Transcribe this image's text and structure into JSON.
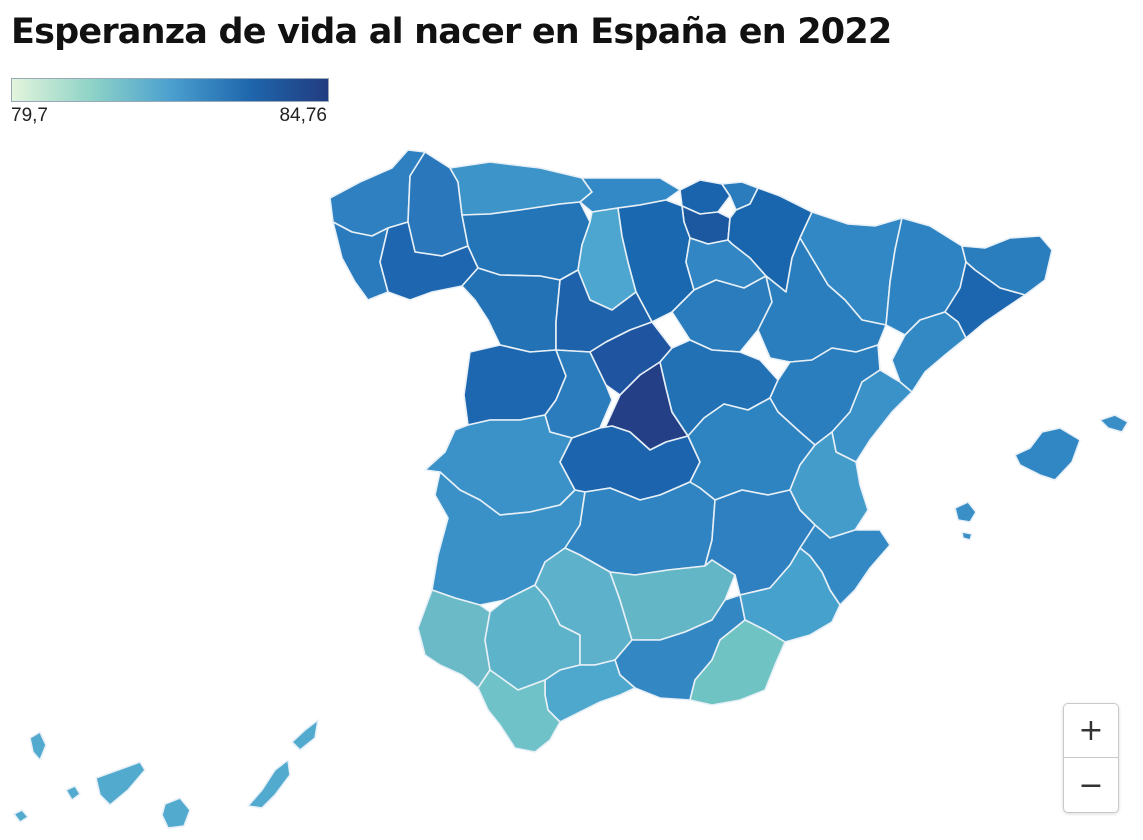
{
  "title": "Esperanza de vida al nacer en España en 2022",
  "legend": {
    "min_label": "79,7",
    "max_label": "84,76",
    "colors": [
      "#e3f4dc",
      "#8fd3c7",
      "#4ba0cf",
      "#1f67ad",
      "#223c80"
    ]
  },
  "zoom": {
    "in_label": "+",
    "out_label": "−"
  },
  "regions": [
    {
      "id": "coruna",
      "color": "#2e80c0"
    },
    {
      "id": "lugo",
      "color": "#2a78bb"
    },
    {
      "id": "pontevedra",
      "color": "#2a7bbd"
    },
    {
      "id": "ourense",
      "color": "#1e66b0"
    },
    {
      "id": "asturias",
      "color": "#3d94c9"
    },
    {
      "id": "leon",
      "color": "#2475b7"
    },
    {
      "id": "cantabria",
      "color": "#3389c5"
    },
    {
      "id": "palencia",
      "color": "#4ca6cf"
    },
    {
      "id": "burgos",
      "color": "#1968b0"
    },
    {
      "id": "bizkaia",
      "color": "#1a63ad"
    },
    {
      "id": "gipuzkoa",
      "color": "#2b7cbd"
    },
    {
      "id": "araba",
      "color": "#1c58a0"
    },
    {
      "id": "navarra",
      "color": "#1966ae"
    },
    {
      "id": "larioja",
      "color": "#3186c3"
    },
    {
      "id": "zamora",
      "color": "#2272b5"
    },
    {
      "id": "valladolid",
      "color": "#1d62ab"
    },
    {
      "id": "soria",
      "color": "#2a7cbd"
    },
    {
      "id": "huesca",
      "color": "#3288c4"
    },
    {
      "id": "zaragoza",
      "color": "#2b7ebe"
    },
    {
      "id": "lleida",
      "color": "#2e84c2"
    },
    {
      "id": "girona",
      "color": "#2b7ebe"
    },
    {
      "id": "barcelona",
      "color": "#1b66ae"
    },
    {
      "id": "tarragona",
      "color": "#3389c4"
    },
    {
      "id": "salamanca",
      "color": "#1c67af"
    },
    {
      "id": "avila",
      "color": "#2a7cbd"
    },
    {
      "id": "segovia",
      "color": "#1f55a0"
    },
    {
      "id": "madrid",
      "color": "#243f86"
    },
    {
      "id": "guadalajara",
      "color": "#2271b5"
    },
    {
      "id": "teruel",
      "color": "#2a7ebe"
    },
    {
      "id": "castellon",
      "color": "#3a92c8"
    },
    {
      "id": "caceres",
      "color": "#3b92c9"
    },
    {
      "id": "toledo",
      "color": "#1c64ad"
    },
    {
      "id": "cuenca",
      "color": "#2e83c1"
    },
    {
      "id": "valencia",
      "color": "#449ccb"
    },
    {
      "id": "badajoz",
      "color": "#3a91c8"
    },
    {
      "id": "ciudadreal",
      "color": "#3084c2"
    },
    {
      "id": "albacete",
      "color": "#2e80c0"
    },
    {
      "id": "alicante",
      "color": "#3389c4"
    },
    {
      "id": "huelva",
      "color": "#6bbac8"
    },
    {
      "id": "sevilla",
      "color": "#5db3ca"
    },
    {
      "id": "cordoba",
      "color": "#5db1ca"
    },
    {
      "id": "jaen",
      "color": "#62b6c6"
    },
    {
      "id": "granada",
      "color": "#3388c4"
    },
    {
      "id": "murcia",
      "color": "#46a1cd"
    },
    {
      "id": "almeria",
      "color": "#6fc3c3"
    },
    {
      "id": "malaga",
      "color": "#4ea8ce"
    },
    {
      "id": "cadiz",
      "color": "#6fc3c8"
    },
    {
      "id": "mallorca",
      "color": "#3187c3"
    },
    {
      "id": "menorca",
      "color": "#3a8ec6"
    },
    {
      "id": "ibiza",
      "color": "#3a8fc7"
    },
    {
      "id": "canarias",
      "color": "#52abcf"
    }
  ]
}
